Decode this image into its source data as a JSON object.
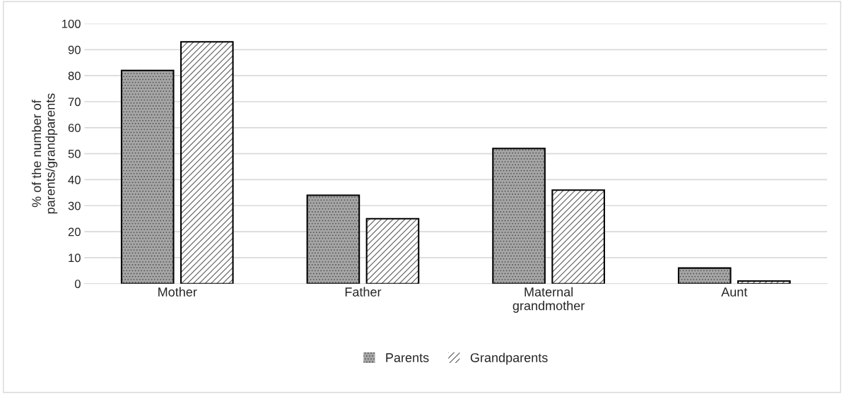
{
  "chart_data": {
    "type": "bar",
    "ylabel": "% of the number of\nparents/grandparents",
    "categories": [
      "Mother",
      "Father",
      "Maternal\ngrandmother",
      "Aunt"
    ],
    "series": [
      {
        "name": "Parents",
        "color": "#a6a6a6",
        "values": [
          82,
          34,
          52,
          6
        ]
      },
      {
        "name": "Grandparents",
        "color": "#ffffff",
        "values": [
          93,
          25,
          36,
          1
        ]
      }
    ],
    "ylim": [
      0,
      100
    ],
    "yticks": [
      0,
      10,
      20,
      30,
      40,
      50,
      60,
      70,
      80,
      90,
      100
    ],
    "grid": "y",
    "legend": "bottom"
  }
}
